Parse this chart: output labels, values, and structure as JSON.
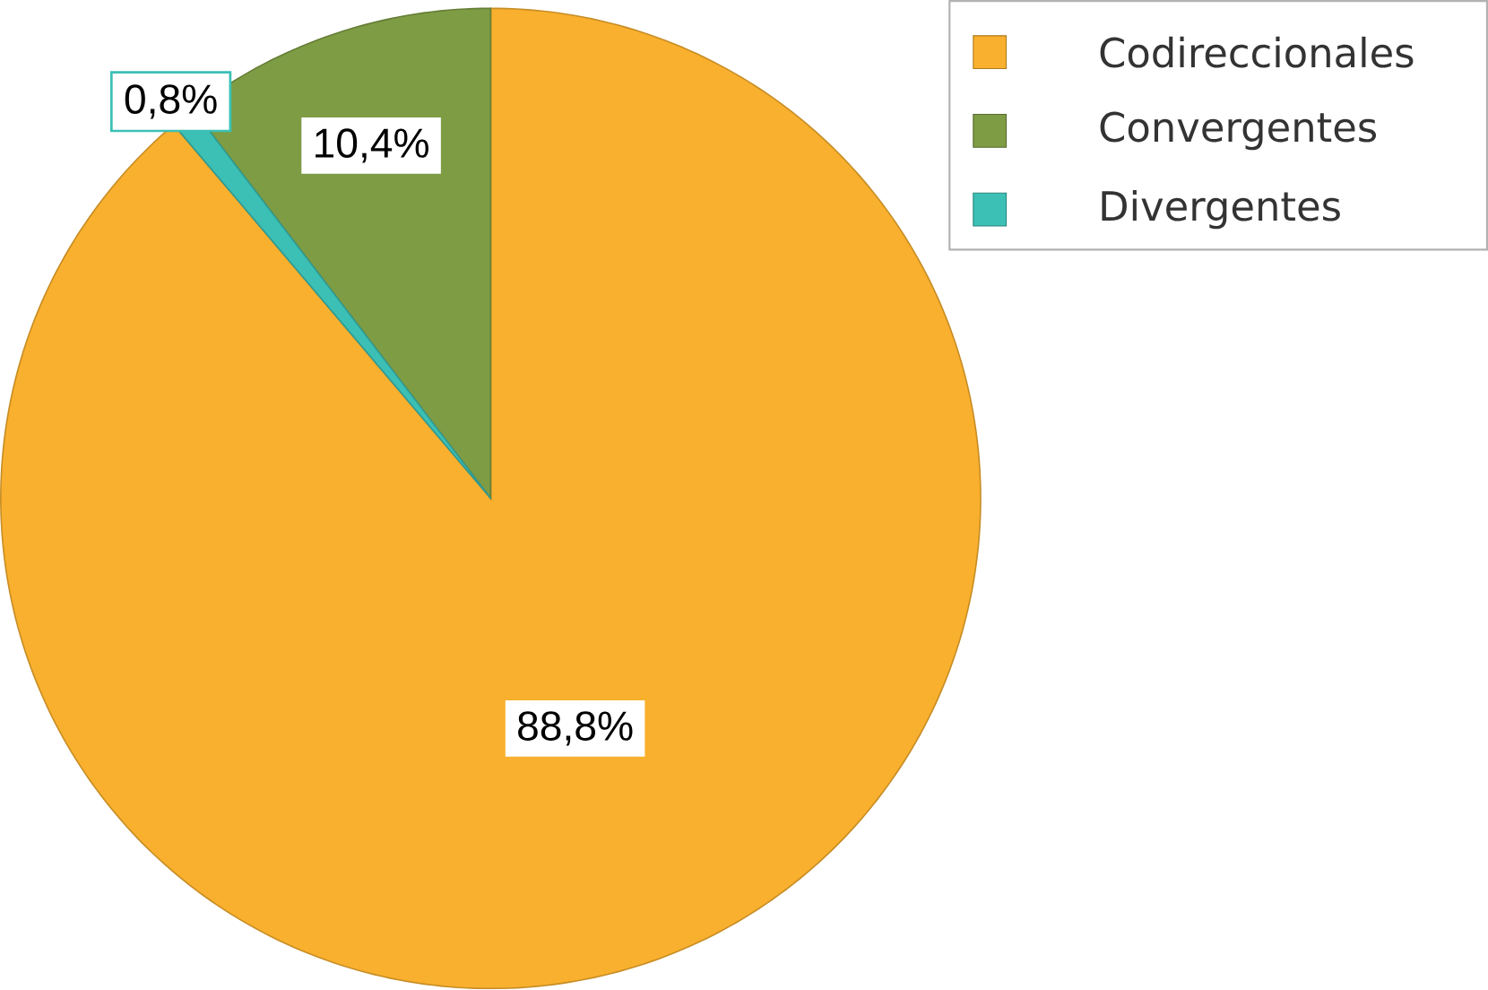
{
  "chart_data": {
    "type": "pie",
    "categories": [
      "Codireccionales",
      "Convergentes",
      "Divergentes"
    ],
    "values": [
      88.8,
      10.4,
      0.8
    ],
    "value_labels": [
      "88,8%",
      "10,4%",
      "0,8%"
    ],
    "colors": [
      "#f9b02e",
      "#7e9c44",
      "#3cc0b5"
    ],
    "legend": "top right"
  }
}
